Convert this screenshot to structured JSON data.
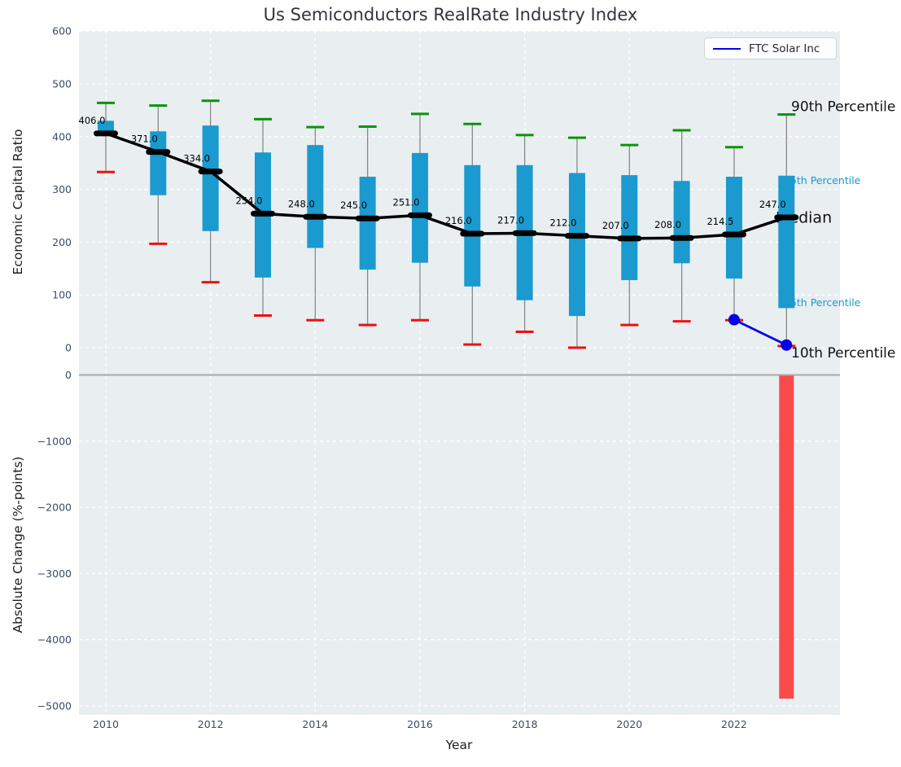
{
  "figure": {
    "title": "Us Semiconductors RealRate Industry Index"
  },
  "legend": {
    "label": "FTC Solar Inc",
    "line_color": "#0000ee"
  },
  "colors": {
    "axes_bg": "#e9eef1",
    "grid": "rgba(255,255,255,0.95)",
    "box_fill": "#1a9ace",
    "whisker": "#808080",
    "p90_cap": "#0a940a",
    "p10_cap": "#f01010",
    "median": "#000000",
    "ftc_line": "#0000ee",
    "change_bar": "#fb4a4a",
    "zero_line": "#a9a9a9",
    "tick_label": "#3d4c63",
    "annotation_black": "#111111",
    "annotation_cyan": "#1a9ace"
  },
  "chart_data": [
    {
      "type": "box",
      "title": "Us Semiconductors RealRate Industry Index",
      "ylabel": "Economic Capital Ratio",
      "ylim": [
        -50,
        600
      ],
      "grid": true,
      "legend_position": "upper right",
      "yticks": [
        600,
        500,
        400,
        300,
        200,
        100,
        0
      ],
      "years": [
        2010,
        2011,
        2012,
        2013,
        2014,
        2015,
        2016,
        2017,
        2018,
        2019,
        2020,
        2021,
        2022,
        2023
      ],
      "p90": [
        464,
        459,
        468,
        433,
        418,
        419,
        443,
        424,
        403,
        398,
        384,
        412,
        380,
        442
      ],
      "p75": [
        430,
        410,
        421,
        370,
        384,
        324,
        369,
        346,
        346,
        331,
        327,
        316,
        324,
        326
      ],
      "median": [
        406,
        371,
        334,
        254,
        248,
        245,
        251,
        216,
        217,
        212,
        207,
        208,
        214.5,
        247
      ],
      "p25": [
        403,
        289,
        221,
        133,
        189,
        148,
        161,
        116,
        90,
        60,
        128,
        160,
        131,
        75
      ],
      "p10": [
        333,
        197,
        124,
        61,
        52,
        43,
        52,
        6,
        30,
        0,
        43,
        50,
        52,
        3
      ],
      "median_labels": [
        "406.0",
        "371.0",
        "334.0",
        "254.0",
        "248.0",
        "245.0",
        "251.0",
        "216.0",
        "217.0",
        "212.0",
        "207.0",
        "208.0",
        "214.5",
        "247.0"
      ],
      "series": [
        {
          "name": "FTC Solar Inc",
          "x": [
            2022,
            2023
          ],
          "y": [
            53,
            5
          ]
        }
      ],
      "annotations": [
        {
          "text": "90th Percentile",
          "at": "p90",
          "dy": -10,
          "color": "#111111",
          "size": 17
        },
        {
          "text": "75th Percentile",
          "at": "p75",
          "dy": 6,
          "color": "#1a9ace",
          "size": 12.5
        },
        {
          "text": "Median",
          "at": "median",
          "dy": 0,
          "color": "#111111",
          "size": 19
        },
        {
          "text": "25th Percentile",
          "at": "p25",
          "dy": -7,
          "color": "#1a9ace",
          "size": 12.5
        },
        {
          "text": "10th Percentile",
          "at": "p10",
          "dy": 8,
          "color": "#111111",
          "size": 17
        }
      ]
    },
    {
      "type": "bar",
      "ylabel": "Absolute Change (%-points)",
      "xlabel": "Year",
      "ylim": [
        -5140,
        10
      ],
      "grid": true,
      "yticks": [
        {
          "v": 0,
          "label": "0"
        },
        {
          "v": -1000,
          "label": "−1000"
        },
        {
          "v": -2000,
          "label": "−2000"
        },
        {
          "v": -3000,
          "label": "−3000"
        },
        {
          "v": -4000,
          "label": "−4000"
        },
        {
          "v": -5000,
          "label": "−5000"
        }
      ],
      "xticks": [
        "2010",
        "2012",
        "2014",
        "2016",
        "2018",
        "2020",
        "2022"
      ],
      "xtick_years": [
        2010,
        2012,
        2014,
        2016,
        2018,
        2020,
        2022
      ],
      "bars": [
        {
          "year": 2023,
          "value": -4890
        }
      ]
    }
  ]
}
